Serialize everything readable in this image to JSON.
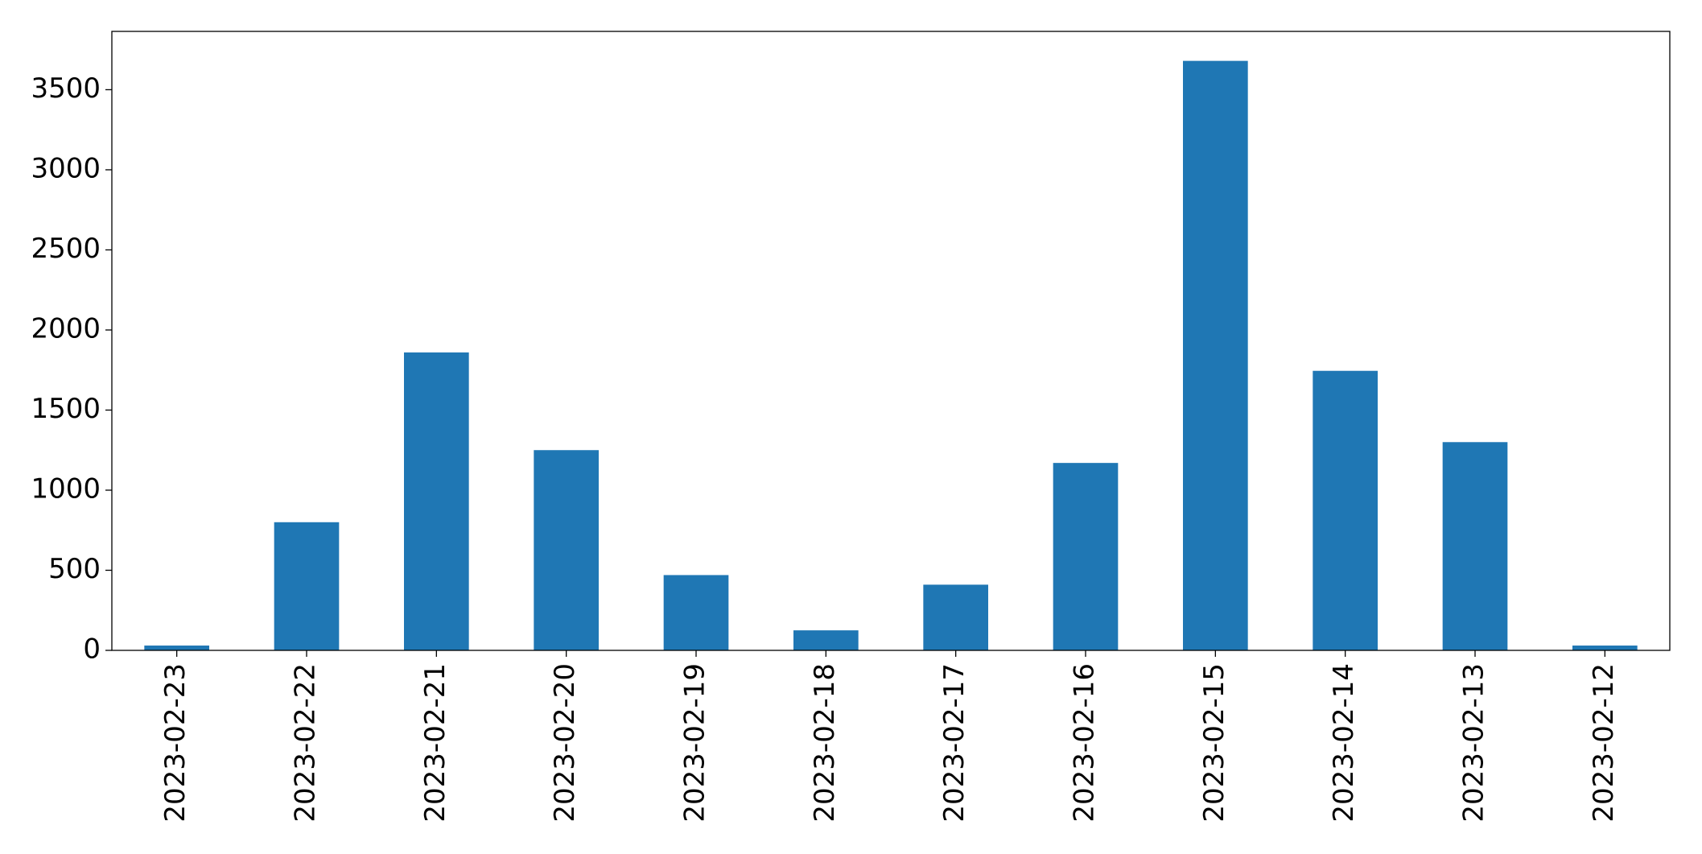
{
  "chart_data": {
    "type": "bar",
    "categories": [
      "2023-02-23",
      "2023-02-22",
      "2023-02-21",
      "2023-02-20",
      "2023-02-19",
      "2023-02-18",
      "2023-02-17",
      "2023-02-16",
      "2023-02-15",
      "2023-02-14",
      "2023-02-13",
      "2023-02-12"
    ],
    "values": [
      30,
      800,
      1860,
      1250,
      470,
      125,
      410,
      1170,
      3680,
      1745,
      1300,
      30
    ],
    "color": "#1f77b4",
    "ylim": [
      0,
      3864
    ],
    "yticks": [
      0,
      500,
      1000,
      1500,
      2000,
      2500,
      3000,
      3500
    ],
    "grid": false
  }
}
